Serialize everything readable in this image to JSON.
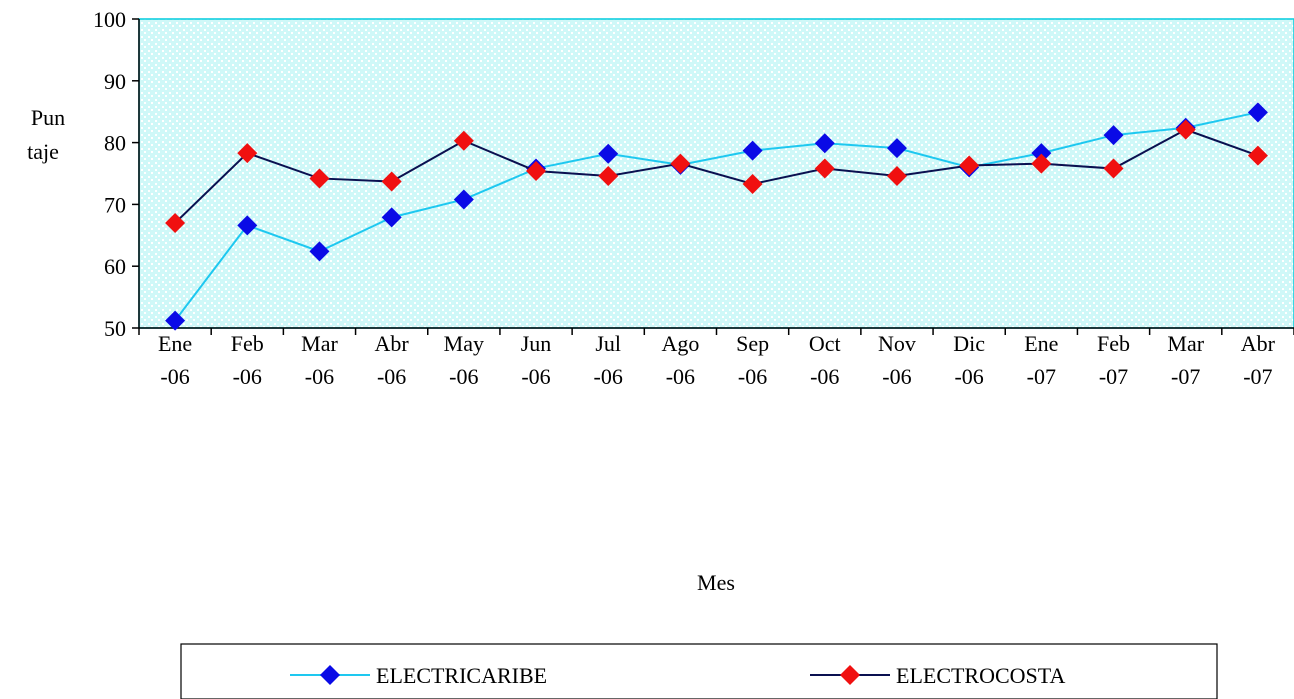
{
  "chart_data": {
    "type": "line",
    "title": "",
    "xlabel": "Mes",
    "ylabel_lines": [
      "Pun",
      "taje"
    ],
    "ylim": [
      50,
      100
    ],
    "yticks": [
      50,
      60,
      70,
      80,
      90,
      100
    ],
    "categories": [
      [
        "Ene",
        "-06"
      ],
      [
        "Feb",
        "-06"
      ],
      [
        "Mar",
        "-06"
      ],
      [
        "Abr",
        "-06"
      ],
      [
        "May",
        "-06"
      ],
      [
        "Jun",
        "-06"
      ],
      [
        "Jul",
        "-06"
      ],
      [
        "Ago",
        "-06"
      ],
      [
        "Sep",
        "-06"
      ],
      [
        "Oct",
        "-06"
      ],
      [
        "Nov",
        "-06"
      ],
      [
        "Dic",
        "-06"
      ],
      [
        "Ene",
        "-07"
      ],
      [
        "Feb",
        "-07"
      ],
      [
        "Mar",
        "-07"
      ],
      [
        "Abr",
        "-07"
      ]
    ],
    "series": [
      {
        "name": "ELECTRICARIBE",
        "line_color": "#1EC8F0",
        "marker_color": "#0A0AE6",
        "values": [
          51.2,
          66.6,
          62.4,
          67.9,
          70.8,
          75.8,
          78.2,
          76.4,
          78.7,
          79.9,
          79.1,
          76.0,
          78.3,
          81.2,
          82.4,
          84.9
        ]
      },
      {
        "name": "ELECTROCOSTA",
        "line_color": "#0A1050",
        "marker_color": "#F01010",
        "values": [
          67.0,
          78.3,
          74.2,
          73.7,
          80.3,
          75.4,
          74.6,
          76.6,
          73.3,
          75.8,
          74.6,
          76.3,
          76.6,
          75.8,
          82.1,
          77.9
        ]
      }
    ],
    "plot_background": "#CFF8F8",
    "plot_border_color": "#00CCDD",
    "grid": false,
    "legend_position": "bottom"
  }
}
